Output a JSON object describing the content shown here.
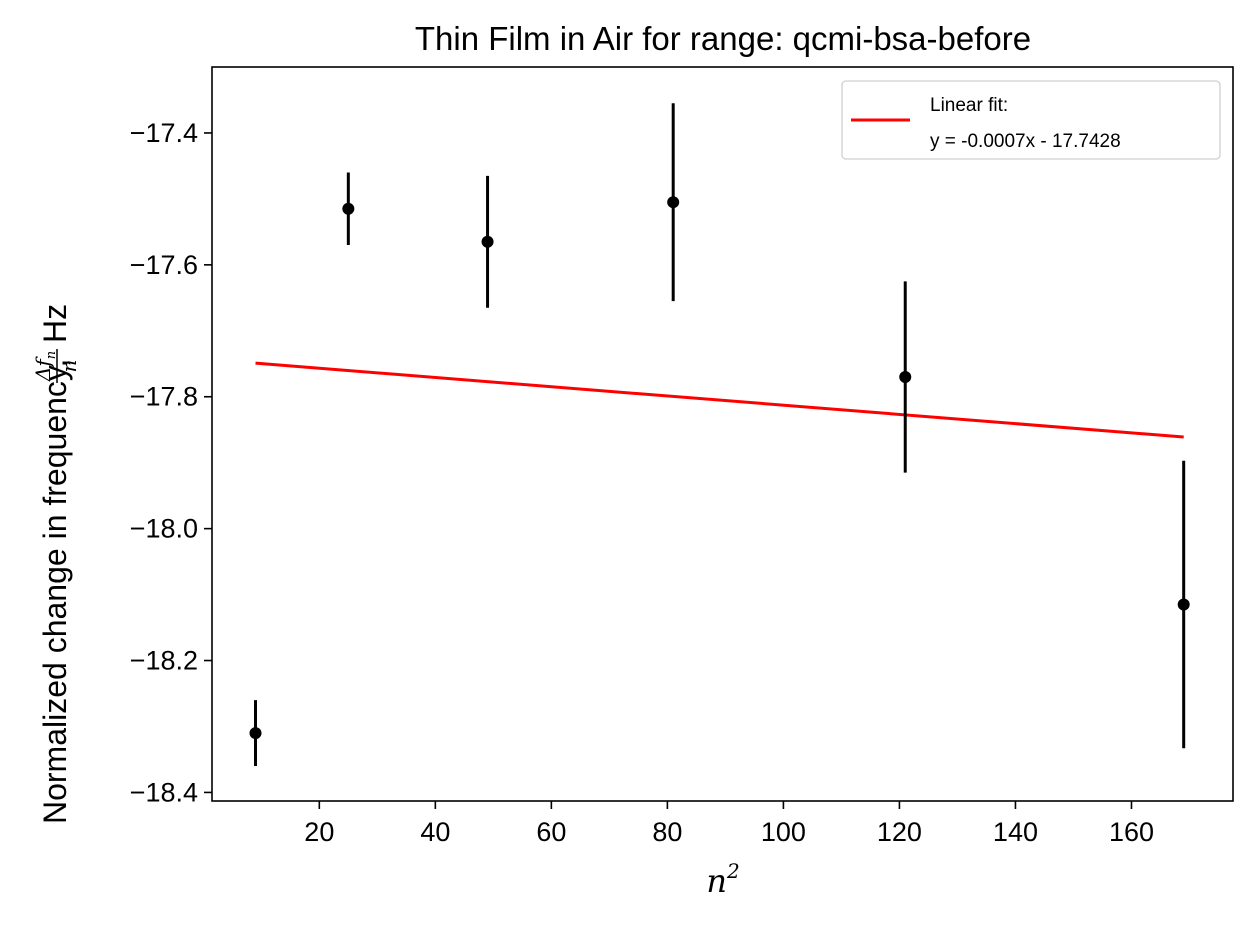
{
  "chart_data": {
    "type": "scatter",
    "title": "Thin Film in Air for range: qcmi-bsa-before",
    "xlabel": "n",
    "xlabel_superscript": "2",
    "ylabel": "Normalized change in frequency,",
    "ylabel_fraction_numerator": "Δf",
    "ylabel_fraction_subscript": "n",
    "ylabel_fraction_denominator": "n",
    "ylabel_unit": "Hz",
    "xlim": [
      1.5,
      177.5
    ],
    "ylim": [
      -18.413,
      -17.3
    ],
    "x_ticks": [
      20,
      40,
      60,
      80,
      100,
      120,
      140,
      160
    ],
    "x_tick_labels": [
      "20",
      "40",
      "60",
      "80",
      "100",
      "120",
      "140",
      "160"
    ],
    "y_ticks": [
      -17.4,
      -17.6,
      -17.8,
      -18.0,
      -18.2,
      -18.4
    ],
    "y_tick_labels": [
      "−17.4",
      "−17.6",
      "−17.8",
      "−18.0",
      "−18.2",
      "−18.4"
    ],
    "grid": false,
    "legend_position": "top-right",
    "points": {
      "x": [
        9,
        25,
        49,
        81,
        121,
        169
      ],
      "y": [
        -18.31,
        -17.515,
        -17.565,
        -17.505,
        -17.77,
        -18.115
      ],
      "yerr": [
        0.05,
        0.055,
        0.1,
        0.15,
        0.145,
        0.218
      ],
      "color": "#000000"
    },
    "fit": {
      "name": "Linear fit:",
      "equation": "y = -0.0007x - 17.7428",
      "x": [
        9,
        169
      ],
      "y": [
        -17.7491,
        -17.8611
      ],
      "color": "#ff0000"
    }
  }
}
